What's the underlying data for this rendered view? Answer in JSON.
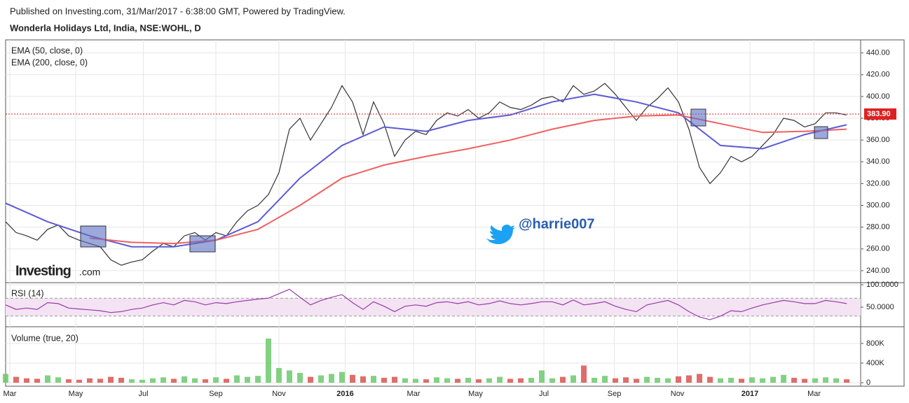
{
  "header": "Published on Investing.com, 31/Mar/2017 - 6:38:00 GMT, Powered by TradingView.",
  "watermark": "@harrie007",
  "logo": {
    "main": "Investing",
    "suffix": ".com"
  },
  "chart_data": [
    {
      "type": "line",
      "title": "Wonderla Holidays Ltd, India, NSE:WOHL, D",
      "color": "#333333",
      "values": [
        285,
        275,
        272,
        268,
        278,
        282,
        272,
        268,
        265,
        262,
        250,
        245,
        248,
        250,
        258,
        265,
        262,
        272,
        275,
        268,
        275,
        272,
        285,
        295,
        300,
        310,
        330,
        370,
        380,
        360,
        375,
        390,
        410,
        395,
        365,
        395,
        375,
        345,
        360,
        368,
        365,
        378,
        385,
        382,
        388,
        380,
        385,
        395,
        390,
        388,
        392,
        398,
        400,
        395,
        410,
        402,
        405,
        412,
        402,
        390,
        378,
        390,
        398,
        408,
        395,
        370,
        335,
        320,
        330,
        345,
        340,
        345,
        355,
        365,
        380,
        378,
        372,
        375,
        385,
        385,
        383
      ],
      "series": [
        {
          "name": "EMA (50, close, 0)",
          "color": "#5b5bd6",
          "x": [
            0,
            4,
            8,
            12,
            16,
            20,
            24,
            28,
            32,
            36,
            40,
            44,
            48,
            52,
            56,
            60,
            64,
            68,
            72,
            76,
            80
          ],
          "values": [
            302,
            285,
            272,
            262,
            262,
            268,
            285,
            325,
            355,
            372,
            368,
            378,
            383,
            395,
            402,
            395,
            385,
            355,
            352,
            365,
            374
          ]
        },
        {
          "name": "EMA (200, close, 0)",
          "color": "#f06060",
          "x": [
            0,
            4,
            8,
            12,
            16,
            20,
            24,
            28,
            32,
            36,
            40,
            44,
            48,
            52,
            56,
            60,
            64,
            68,
            72,
            76,
            80
          ],
          "values": [
            null,
            null,
            270,
            266,
            265,
            268,
            278,
            300,
            325,
            337,
            345,
            352,
            360,
            370,
            378,
            382,
            383,
            375,
            367,
            368,
            370
          ]
        }
      ],
      "last_price": {
        "value": 383.9,
        "label": "383.90"
      },
      "last_color": "#e02020",
      "ylim": [
        229,
        452
      ],
      "yticks": [
        {
          "value": 240,
          "label": "240.00"
        },
        {
          "value": 260,
          "label": "260.00"
        },
        {
          "value": 280,
          "label": "280.00"
        },
        {
          "value": 300,
          "label": "300.00"
        },
        {
          "value": 320,
          "label": "320.00"
        },
        {
          "value": 340,
          "label": "340.00"
        },
        {
          "value": 360,
          "label": "360.00"
        },
        {
          "value": 380,
          "label": "380.00"
        },
        {
          "value": 400,
          "label": "400.00"
        },
        {
          "value": 420,
          "label": "420.00"
        },
        {
          "value": 440,
          "label": "440.00"
        }
      ]
    },
    {
      "type": "line",
      "title": "RSI (14)",
      "color": "#9a3aa8",
      "values": [
        55,
        45,
        48,
        45,
        60,
        58,
        48,
        46,
        44,
        42,
        38,
        40,
        45,
        48,
        55,
        60,
        55,
        65,
        62,
        55,
        60,
        58,
        62,
        65,
        68,
        70,
        80,
        90,
        72,
        55,
        65,
        72,
        78,
        60,
        45,
        62,
        52,
        40,
        52,
        55,
        52,
        60,
        62,
        58,
        62,
        55,
        58,
        64,
        58,
        55,
        58,
        62,
        62,
        55,
        66,
        55,
        58,
        62,
        52,
        45,
        40,
        55,
        60,
        65,
        55,
        40,
        28,
        22,
        30,
        42,
        40,
        48,
        55,
        60,
        65,
        62,
        58,
        58,
        65,
        62,
        58
      ],
      "band": [
        30,
        70
      ],
      "band_color": "#f3e3f3",
      "ylim": [
        6.25,
        104.7
      ],
      "yticks": [
        {
          "value": 100,
          "label": "100.0000"
        },
        {
          "value": 50,
          "label": "50.0000"
        }
      ]
    },
    {
      "type": "bar",
      "title": "Volume (true, 20)",
      "up_color": "#6cc96c",
      "down_color": "#d9534f",
      "values": [
        180000,
        120000,
        90000,
        80000,
        150000,
        110000,
        70000,
        60000,
        90000,
        80000,
        120000,
        100000,
        70000,
        60000,
        90000,
        110000,
        80000,
        130000,
        90000,
        70000,
        110000,
        80000,
        150000,
        120000,
        140000,
        900000,
        300000,
        250000,
        200000,
        120000,
        150000,
        180000,
        220000,
        160000,
        130000,
        140000,
        100000,
        120000,
        90000,
        80000,
        70000,
        110000,
        90000,
        80000,
        100000,
        70000,
        90000,
        120000,
        80000,
        90000,
        100000,
        250000,
        90000,
        120000,
        150000,
        350000,
        100000,
        140000,
        90000,
        110000,
        80000,
        120000,
        100000,
        90000,
        130000,
        150000,
        180000,
        120000,
        90000,
        100000,
        80000,
        110000,
        90000,
        120000,
        160000,
        100000,
        80000,
        90000,
        110000,
        90000,
        70000
      ],
      "xlim": [
        0,
        81.33
      ],
      "xticks": [
        {
          "value": 0.4,
          "label": "Mar"
        },
        {
          "value": 6.67,
          "label": "May"
        },
        {
          "value": 13.1,
          "label": "Jul"
        },
        {
          "value": 20,
          "label": "Sep"
        },
        {
          "value": 26,
          "label": "Nov"
        },
        {
          "value": 32.3,
          "label": "2016"
        },
        {
          "value": 38.8,
          "label": "Mar"
        },
        {
          "value": 44.7,
          "label": "May"
        },
        {
          "value": 51.2,
          "label": "Jul"
        },
        {
          "value": 57.9,
          "label": "Sep"
        },
        {
          "value": 63.9,
          "label": "Nov"
        },
        {
          "value": 70.8,
          "label": "2017"
        },
        {
          "value": 76.9,
          "label": "Mar"
        }
      ],
      "ylim": [
        -71000,
        1140000
      ],
      "yticks": [
        0,
        {
          "value": 400000,
          "label": "400K"
        },
        {
          "value": 800000,
          "label": "800K"
        }
      ]
    }
  ]
}
